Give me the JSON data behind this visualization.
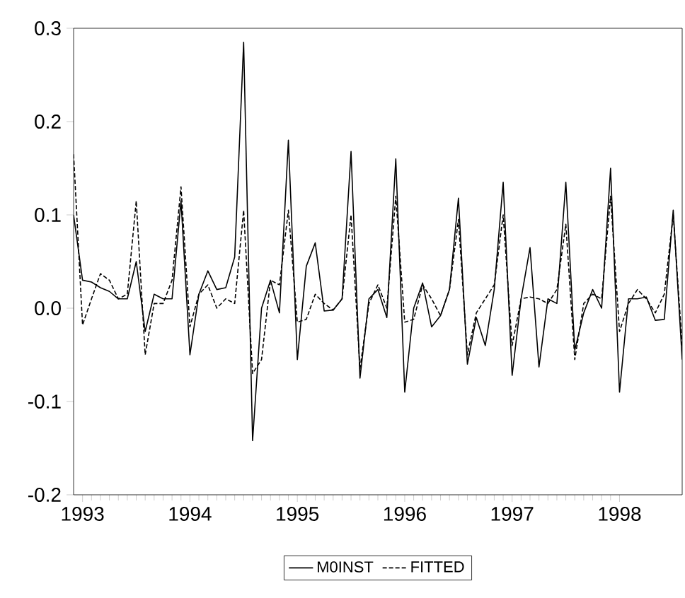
{
  "chart_data": {
    "type": "line",
    "x": [
      "1992-12",
      "1993-01",
      "1993-02",
      "1993-03",
      "1993-04",
      "1993-05",
      "1993-06",
      "1993-07",
      "1993-08",
      "1993-09",
      "1993-10",
      "1993-11",
      "1993-12",
      "1994-01",
      "1994-02",
      "1994-03",
      "1994-04",
      "1994-05",
      "1994-06",
      "1994-07",
      "1994-08",
      "1994-09",
      "1994-10",
      "1994-11",
      "1994-12",
      "1995-01",
      "1995-02",
      "1995-03",
      "1995-04",
      "1995-05",
      "1995-06",
      "1995-07",
      "1995-08",
      "1995-09",
      "1995-10",
      "1995-11",
      "1995-12",
      "1996-01",
      "1996-02",
      "1996-03",
      "1996-04",
      "1996-05",
      "1996-06",
      "1996-07",
      "1996-08",
      "1996-09",
      "1996-10",
      "1996-11",
      "1996-12",
      "1997-01",
      "1997-02",
      "1997-03",
      "1997-04",
      "1997-05",
      "1997-06",
      "1997-07",
      "1997-08",
      "1997-09",
      "1997-10",
      "1997-11",
      "1997-12",
      "1998-01",
      "1998-02",
      "1998-03",
      "1998-04",
      "1998-05",
      "1998-06",
      "1998-07",
      "1998-08"
    ],
    "series": [
      {
        "name": "M0INST",
        "color": "#000000",
        "line_style": "solid",
        "values": [
          0.1,
          0.03,
          0.028,
          0.022,
          0.018,
          0.01,
          0.01,
          0.05,
          -0.025,
          0.015,
          0.01,
          0.01,
          0.115,
          -0.05,
          0.015,
          0.04,
          0.02,
          0.022,
          0.055,
          0.285,
          -0.142,
          0.0,
          0.03,
          -0.005,
          0.18,
          -0.055,
          0.045,
          0.07,
          -0.003,
          -0.002,
          0.01,
          0.168,
          -0.075,
          0.01,
          0.02,
          -0.01,
          0.16,
          -0.09,
          0.0,
          0.027,
          -0.02,
          -0.008,
          0.02,
          0.118,
          -0.06,
          -0.01,
          -0.04,
          0.02,
          0.135,
          -0.072,
          0.01,
          0.065,
          -0.063,
          0.01,
          0.005,
          0.135,
          -0.045,
          -0.005,
          0.02,
          0.0,
          0.15,
          -0.09,
          0.01,
          0.01,
          0.012,
          -0.013,
          -0.012,
          0.105,
          -0.055
        ]
      },
      {
        "name": "FITTED",
        "color": "#000000",
        "line_style": "dashed",
        "values": [
          0.165,
          -0.018,
          0.01,
          0.037,
          0.03,
          0.01,
          0.015,
          0.115,
          -0.05,
          0.005,
          0.005,
          0.03,
          0.13,
          -0.02,
          0.015,
          0.025,
          0.0,
          0.01,
          0.005,
          0.105,
          -0.07,
          -0.055,
          0.03,
          0.025,
          0.105,
          -0.015,
          -0.012,
          0.015,
          0.005,
          -0.002,
          0.01,
          0.1,
          -0.065,
          0.005,
          0.025,
          0.0,
          0.12,
          -0.015,
          -0.012,
          0.025,
          0.01,
          -0.008,
          0.02,
          0.095,
          -0.05,
          -0.005,
          0.01,
          0.025,
          0.1,
          -0.04,
          0.01,
          0.012,
          0.01,
          0.005,
          0.02,
          0.09,
          -0.055,
          0.005,
          0.015,
          0.01,
          0.12,
          -0.025,
          0.005,
          0.02,
          0.01,
          -0.005,
          0.015,
          0.1,
          -0.04
        ]
      }
    ],
    "xlim": [
      "1992-12",
      "1998-08"
    ],
    "xticks": [
      "1993",
      "1994",
      "1995",
      "1996",
      "1997",
      "1998"
    ],
    "ylim": [
      -0.2,
      0.3
    ],
    "yticks": [
      -0.2,
      -0.1,
      {
        "value": 0,
        "label": "0.0"
      },
      0.1,
      0.2,
      0.3
    ],
    "grid": false,
    "legend": "bottom",
    "marker": "none"
  }
}
